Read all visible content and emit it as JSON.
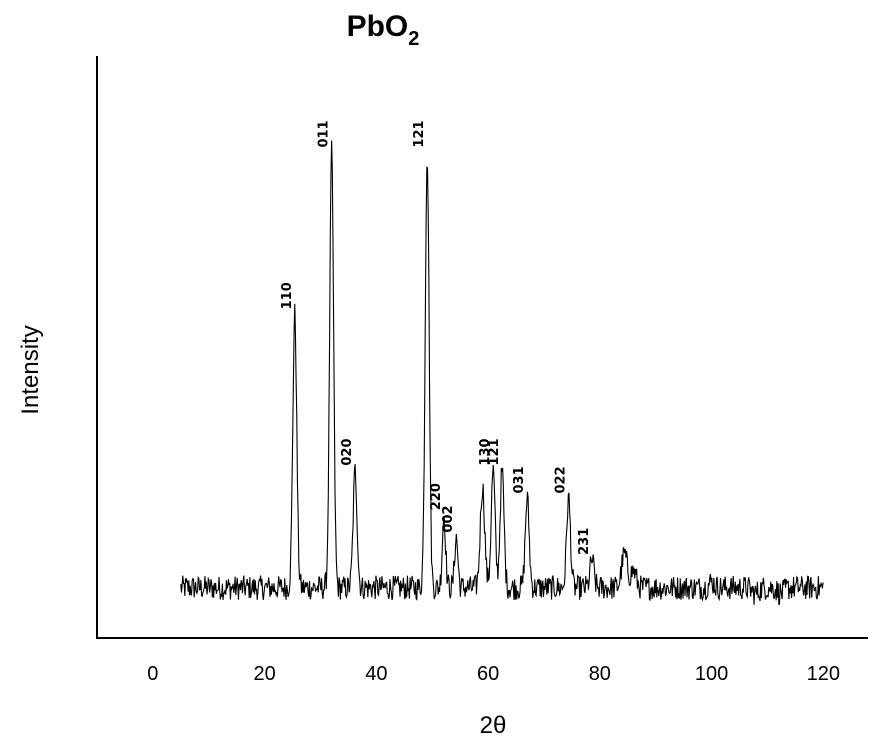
{
  "chart_data": {
    "type": "line",
    "title": "PbO",
    "title_subscript": "2",
    "xlabel": "2θ",
    "ylabel": "Intensity",
    "xlim": [
      -10,
      128
    ],
    "ylim": [
      0,
      100
    ],
    "xticks": [
      0,
      20,
      40,
      60,
      80,
      100,
      120
    ],
    "x_range": [
      5,
      120
    ],
    "baseline": 9,
    "noise": 2.2,
    "y_ticks_shown": false,
    "grid": false,
    "line_color": "#000000",
    "peaks": [
      {
        "x": 25.4,
        "y": 58,
        "width": 0.35,
        "label": "110"
      },
      {
        "x": 32.0,
        "y": 87,
        "width": 0.35,
        "label": "011"
      },
      {
        "x": 36.2,
        "y": 30,
        "width": 0.35,
        "label": "020"
      },
      {
        "x": 49.1,
        "y": 87,
        "width": 0.35,
        "label": "121"
      },
      {
        "x": 52.1,
        "y": 22,
        "width": 0.3,
        "label": "220"
      },
      {
        "x": 54.3,
        "y": 18,
        "width": 0.3,
        "label": "002"
      },
      {
        "x": 59.0,
        "y": 27,
        "width": 0.4,
        "label": ""
      },
      {
        "x": 60.9,
        "y": 30,
        "width": 0.35,
        "label": "130"
      },
      {
        "x": 62.5,
        "y": 30,
        "width": 0.35,
        "label": "121"
      },
      {
        "x": 67.0,
        "y": 25,
        "width": 0.35,
        "label": "031"
      },
      {
        "x": 74.4,
        "y": 25,
        "width": 0.35,
        "label": "022"
      },
      {
        "x": 78.6,
        "y": 14,
        "width": 0.35,
        "label": "231"
      },
      {
        "x": 84.4,
        "y": 15,
        "width": 0.5,
        "label": ""
      },
      {
        "x": 86.0,
        "y": 12,
        "width": 0.5,
        "label": ""
      },
      {
        "x": 100.0,
        "y": 10,
        "width": 0.5,
        "label": ""
      },
      {
        "x": 107.8,
        "y": 8,
        "width": 0.6,
        "label": ""
      },
      {
        "x": 112.4,
        "y": 8,
        "width": 0.6,
        "label": ""
      }
    ]
  }
}
